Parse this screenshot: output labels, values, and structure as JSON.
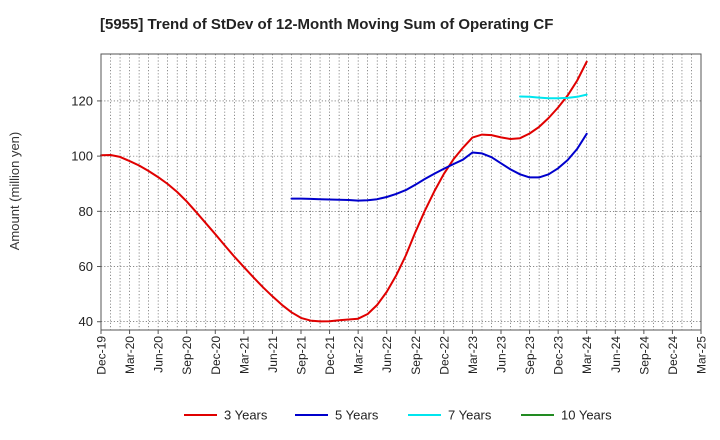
{
  "chart_data": {
    "type": "line",
    "title": "[5955]  Trend of StDev of 12-Month Moving Sum of Operating CF",
    "xlabel": "",
    "ylabel": "Amount (million yen)",
    "ylim": [
      37,
      137
    ],
    "yticks": [
      40,
      60,
      80,
      100,
      120
    ],
    "x_tick_labels": [
      "Dec-19",
      "Mar-20",
      "Jun-20",
      "Sep-20",
      "Dec-20",
      "Mar-21",
      "Jun-21",
      "Sep-21",
      "Dec-21",
      "Mar-22",
      "Jun-22",
      "Sep-22",
      "Dec-22",
      "Mar-23",
      "Jun-23",
      "Sep-23",
      "Dec-23",
      "Mar-24",
      "Jun-24",
      "Sep-24",
      "Dec-24",
      "Mar-25"
    ],
    "grid": true,
    "legend_position": "bottom",
    "series": [
      {
        "name": "3 Years",
        "color": "#e00000",
        "x": [
          "Dec-19",
          "Jan-20",
          "Feb-20",
          "Mar-20",
          "Apr-20",
          "May-20",
          "Jun-20",
          "Jul-20",
          "Aug-20",
          "Sep-20",
          "Oct-20",
          "Nov-20",
          "Dec-20",
          "Jan-21",
          "Feb-21",
          "Mar-21",
          "Apr-21",
          "May-21",
          "Jun-21",
          "Jul-21",
          "Aug-21",
          "Sep-21",
          "Oct-21",
          "Nov-21",
          "Dec-21",
          "Jan-22",
          "Feb-22",
          "Mar-22",
          "Apr-22",
          "May-22",
          "Jun-22",
          "Jul-22",
          "Aug-22",
          "Sep-22",
          "Oct-22",
          "Nov-22",
          "Dec-22",
          "Jan-23",
          "Feb-23",
          "Mar-23",
          "Apr-23",
          "May-23",
          "Jun-23",
          "Jul-23",
          "Aug-23",
          "Sep-23",
          "Oct-23",
          "Nov-23",
          "Dec-23",
          "Jan-24",
          "Feb-24",
          "Mar-24"
        ],
        "values": [
          100.3,
          100.4,
          99.7,
          98.2,
          96.6,
          94.6,
          92.4,
          89.9,
          87.0,
          83.6,
          79.7,
          75.7,
          71.7,
          67.6,
          63.6,
          59.8,
          56.1,
          52.5,
          49.2,
          46.1,
          43.4,
          41.4,
          40.4,
          40.1,
          40.2,
          40.5,
          40.8,
          41.1,
          42.8,
          46.1,
          50.8,
          56.8,
          64.0,
          72.4,
          80.2,
          87.2,
          93.6,
          98.8,
          103.0,
          106.7,
          107.8,
          107.6,
          106.8,
          106.2,
          106.5,
          108.2,
          110.6,
          113.8,
          117.6,
          122.0,
          127.4,
          134.2
        ]
      },
      {
        "name": "5 Years",
        "color": "#0000cc",
        "x": [
          "Aug-21",
          "Sep-21",
          "Oct-21",
          "Nov-21",
          "Dec-21",
          "Jan-22",
          "Feb-22",
          "Mar-22",
          "Apr-22",
          "May-22",
          "Jun-22",
          "Jul-22",
          "Aug-22",
          "Sep-22",
          "Oct-22",
          "Nov-22",
          "Dec-22",
          "Jan-23",
          "Feb-23",
          "Mar-23",
          "Apr-23",
          "May-23",
          "Jun-23",
          "Jul-23",
          "Aug-23",
          "Sep-23",
          "Oct-23",
          "Nov-23",
          "Dec-23",
          "Jan-24",
          "Feb-24",
          "Mar-24"
        ],
        "values": [
          84.6,
          84.6,
          84.5,
          84.4,
          84.3,
          84.2,
          84.1,
          83.9,
          84.0,
          84.4,
          85.2,
          86.3,
          87.7,
          89.6,
          91.7,
          93.6,
          95.4,
          97.1,
          98.7,
          101.3,
          101.0,
          99.6,
          97.4,
          95.2,
          93.4,
          92.3,
          92.3,
          93.4,
          95.6,
          98.6,
          102.6,
          108.1
        ]
      },
      {
        "name": "7 Years",
        "color": "#00e5ee",
        "x": [
          "Aug-23",
          "Sep-23",
          "Oct-23",
          "Nov-23",
          "Dec-23",
          "Jan-24",
          "Feb-24",
          "Mar-24"
        ],
        "values": [
          121.6,
          121.5,
          121.2,
          121.0,
          121.0,
          121.1,
          121.5,
          122.3
        ]
      },
      {
        "name": "10 Years",
        "color": "#228b22",
        "x": [],
        "values": []
      }
    ]
  }
}
